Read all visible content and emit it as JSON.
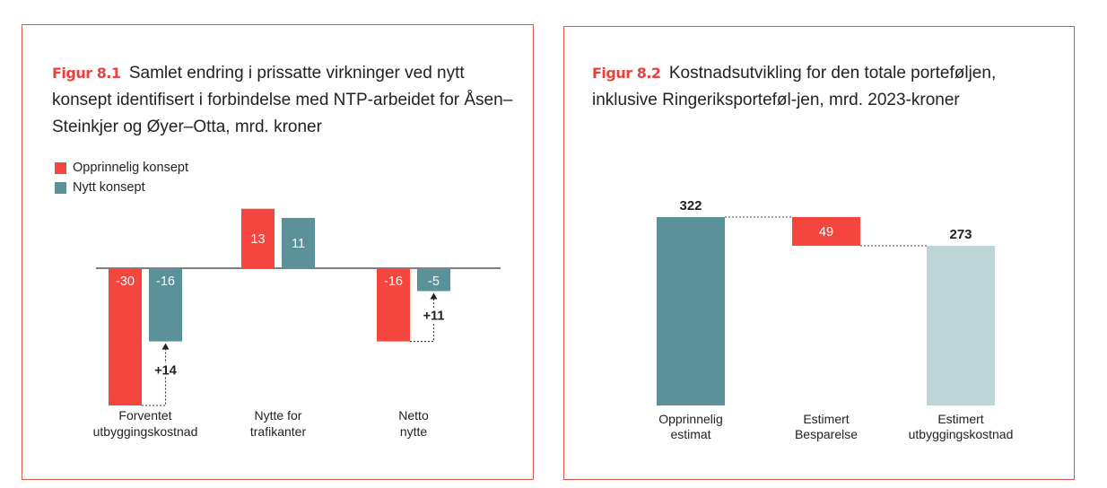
{
  "figures": [
    {
      "label": "Figur 8.1",
      "title": "Samlet endring i prissatte virkninger ved nytt konsept identifisert i forbindelse med NTP-arbeidet for Åsen–Steinkjer og Øyer–Otta, mrd. kroner"
    },
    {
      "label": "Figur 8.2",
      "title": "Kostnadsutvikling for den totale porteføljen, inklusive Ringeriksporteføl-jen, mrd. 2023-kroner"
    }
  ],
  "chart_data": [
    {
      "type": "bar",
      "categories": [
        "Forventet utbyggingskostnad",
        "Nytte for trafikanter",
        "Netto nytte"
      ],
      "series": [
        {
          "name": "Opprinnelig konsept",
          "color": "#f4453f",
          "values": [
            -30,
            13,
            -16
          ],
          "labels": [
            "-30",
            "13",
            "-16"
          ]
        },
        {
          "name": "Nytt konsept",
          "color": "#5b9199",
          "values": [
            -16,
            11,
            -5
          ],
          "labels": [
            "-16",
            "11",
            "-5"
          ]
        }
      ],
      "annotations": [
        {
          "category": "Forventet utbyggingskostnad",
          "from": -30,
          "to": -16,
          "text": "+14"
        },
        {
          "category": "Netto nytte",
          "from": -16,
          "to": -5,
          "text": "+11"
        }
      ],
      "legend": "top-left",
      "grid": false
    },
    {
      "type": "bar",
      "subtype": "waterfall",
      "categories": [
        "Opprinnelig estimat",
        "Estimert Besparelse",
        "Estimert utbyggingskostnad"
      ],
      "steps": [
        {
          "kind": "total",
          "value": 322,
          "label": "322",
          "color": "#5b9199"
        },
        {
          "kind": "decrease",
          "value": 49,
          "label": "49",
          "color": "#f4453f"
        },
        {
          "kind": "total",
          "value": 273,
          "label": "273",
          "color": "#bdd5d7"
        }
      ],
      "grid": false
    }
  ]
}
